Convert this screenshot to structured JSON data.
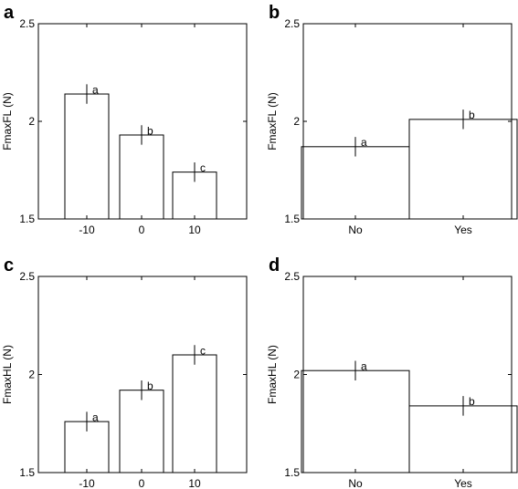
{
  "chart_data": [
    {
      "panel": "a",
      "type": "bar",
      "categories": [
        "-10",
        "0",
        "10"
      ],
      "values": [
        2.14,
        1.93,
        1.74
      ],
      "errors": [
        0.05,
        0.05,
        0.05
      ],
      "significance": [
        "a",
        "b",
        "c"
      ],
      "ylabel": "FmaxFL (N)",
      "xlabel": "",
      "ylim": [
        1.5,
        2.5
      ],
      "yticks": [
        "1.5",
        "2",
        "2.5"
      ],
      "grid": false
    },
    {
      "panel": "b",
      "type": "bar",
      "categories": [
        "No",
        "Yes"
      ],
      "values": [
        1.87,
        2.01
      ],
      "errors": [
        0.05,
        0.05
      ],
      "significance": [
        "a",
        "b"
      ],
      "ylabel": "FmaxFL (N)",
      "xlabel": "",
      "ylim": [
        1.5,
        2.5
      ],
      "yticks": [
        "1.5",
        "2",
        "2.5"
      ],
      "grid": false
    },
    {
      "panel": "c",
      "type": "bar",
      "categories": [
        "-10",
        "0",
        "10"
      ],
      "values": [
        1.76,
        1.92,
        2.1
      ],
      "errors": [
        0.05,
        0.05,
        0.05
      ],
      "significance": [
        "a",
        "b",
        "c"
      ],
      "ylabel": "FmaxHL (N)",
      "xlabel": "",
      "ylim": [
        1.5,
        2.5
      ],
      "yticks": [
        "1.5",
        "2",
        "2.5"
      ],
      "grid": false
    },
    {
      "panel": "d",
      "type": "bar",
      "categories": [
        "No",
        "Yes"
      ],
      "values": [
        2.02,
        1.84
      ],
      "errors": [
        0.05,
        0.05
      ],
      "significance": [
        "a",
        "b"
      ],
      "ylabel": "FmaxHL (N)",
      "xlabel": "",
      "ylim": [
        1.5,
        2.5
      ],
      "yticks": [
        "1.5",
        "2",
        "2.5"
      ],
      "grid": false
    }
  ]
}
